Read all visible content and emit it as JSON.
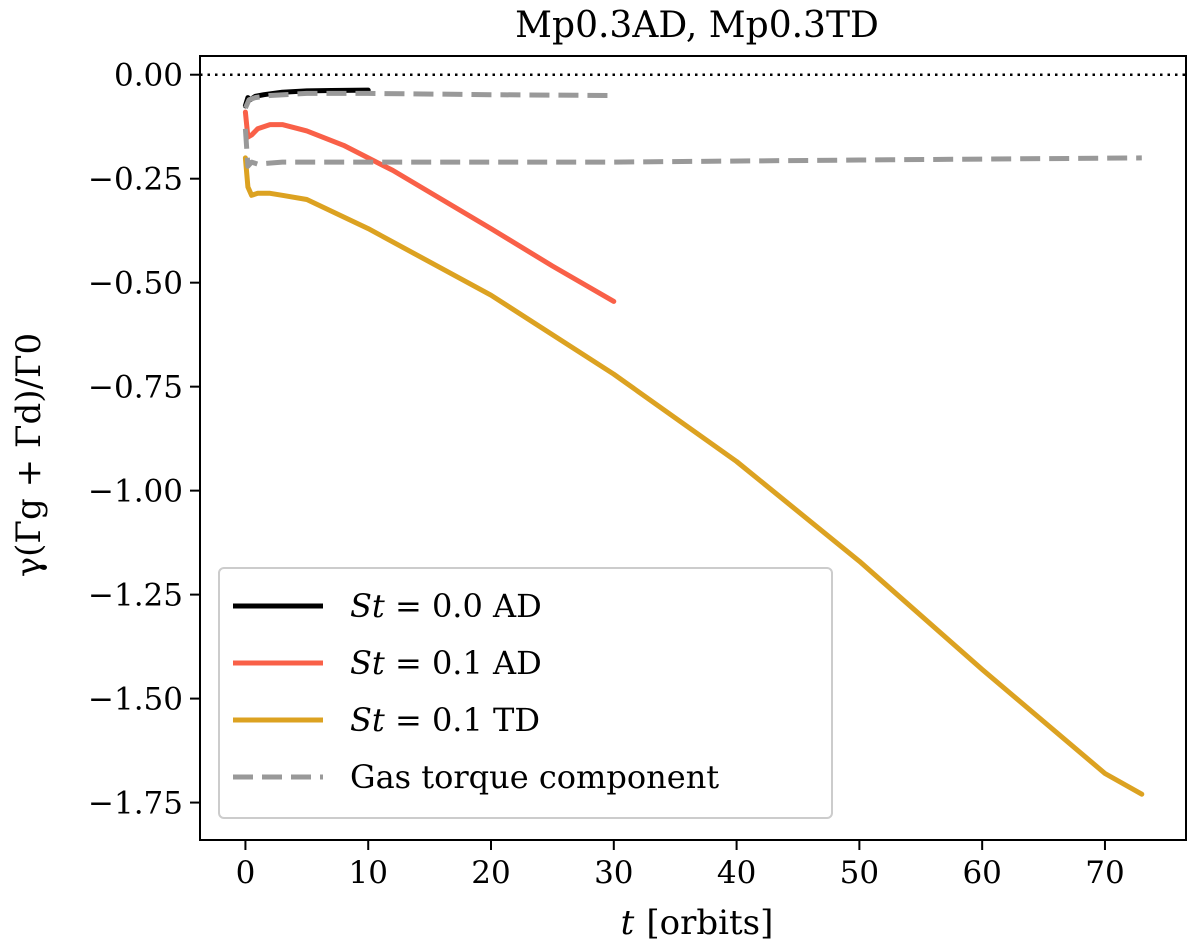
{
  "chart_data": {
    "type": "line",
    "title": "Mp0.3AD, Mp0.3TD",
    "xlabel": "t [orbits]",
    "xlabel_var": "t",
    "xlabel_unit": "[orbits]",
    "ylabel": "γ(Γg + Γd)/Γ0",
    "xlim": [
      -3.7,
      76.6
    ],
    "ylim": [
      -1.84,
      0.045
    ],
    "xticks": [
      0,
      10,
      20,
      30,
      40,
      50,
      60,
      70
    ],
    "xtick_labels": [
      "0",
      "10",
      "20",
      "30",
      "40",
      "50",
      "60",
      "70"
    ],
    "yticks": [
      0.0,
      -0.25,
      -0.5,
      -0.75,
      -1.0,
      -1.25,
      -1.5,
      -1.75
    ],
    "ytick_labels": [
      "0.00",
      "−0.25",
      "−0.50",
      "−0.75",
      "−1.00",
      "−1.25",
      "−1.50",
      "−1.75"
    ],
    "reference_line": {
      "y": 0.0,
      "style": "dotted",
      "color": "#000000"
    },
    "series": [
      {
        "name": "St = 0.0 AD",
        "legend_var": "St",
        "legend_rest": " = 0.0 AD",
        "color": "#000000",
        "dash": "solid",
        "x": [
          0.0,
          0.2,
          0.4,
          0.8,
          1.5,
          3,
          5,
          7,
          10
        ],
        "y": [
          -0.075,
          -0.055,
          -0.06,
          -0.052,
          -0.048,
          -0.042,
          -0.039,
          -0.038,
          -0.037
        ]
      },
      {
        "name": "St = 0.1 AD",
        "legend_var": "St",
        "legend_rest": " = 0.1 AD",
        "color": "#f96048",
        "dash": "solid",
        "x": [
          0.0,
          0.2,
          0.5,
          1.0,
          2.0,
          3.0,
          5,
          8,
          12,
          16,
          20,
          25,
          30
        ],
        "y": [
          -0.09,
          -0.15,
          -0.145,
          -0.13,
          -0.12,
          -0.12,
          -0.135,
          -0.17,
          -0.23,
          -0.3,
          -0.37,
          -0.46,
          -0.545
        ]
      },
      {
        "name": "St = 0.1 TD",
        "legend_var": "St",
        "legend_rest": " = 0.1 TD",
        "color": "#dca221",
        "dash": "solid",
        "x": [
          0.0,
          0.2,
          0.5,
          1.0,
          2.0,
          3.0,
          5,
          10,
          20,
          30,
          40,
          50,
          60,
          70,
          73
        ],
        "y": [
          -0.2,
          -0.27,
          -0.29,
          -0.285,
          -0.285,
          -0.29,
          -0.3,
          -0.37,
          -0.53,
          -0.72,
          -0.93,
          -1.17,
          -1.43,
          -1.68,
          -1.73
        ]
      },
      {
        "name": "Gas torque component",
        "legend_var": "",
        "legend_rest": "Gas torque component",
        "color": "#999999",
        "dash": "dashed",
        "x": [
          0.0,
          0.3,
          0.8,
          2,
          5,
          10,
          20,
          30
        ],
        "y": [
          -0.08,
          -0.06,
          -0.055,
          -0.05,
          -0.045,
          -0.045,
          -0.048,
          -0.05
        ]
      },
      {
        "name": "Gas torque component (TD run)",
        "legend_var": "",
        "legend_rest": "",
        "color": "#999999",
        "dash": "dashed",
        "x": [
          0.0,
          0.2,
          0.5,
          1,
          3,
          10,
          30,
          50,
          73
        ],
        "y": [
          -0.13,
          -0.22,
          -0.21,
          -0.215,
          -0.21,
          -0.21,
          -0.21,
          -0.205,
          -0.2
        ]
      }
    ],
    "legend_location": "lower-left"
  }
}
